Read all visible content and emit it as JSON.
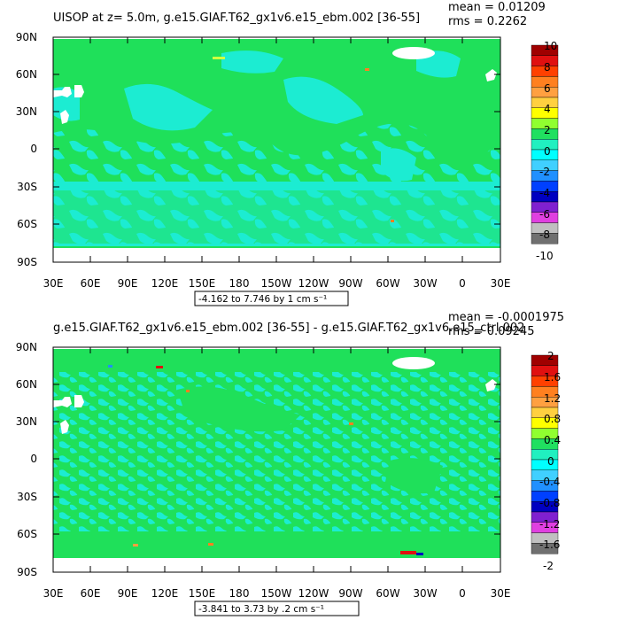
{
  "panels": [
    {
      "title": "UISOP at z=   5.0m, g.e15.GIAF.T62_gx1v6.e15_ebm.002 [36-55]",
      "mean": "mean = 0.01209",
      "rms": "rms = 0.2262",
      "range": "-4.162 to 7.746 by 1 cm s⁻¹",
      "colorbar_labels": [
        "10",
        "8",
        "6",
        "4",
        "2",
        "0",
        "-2",
        "-4",
        "-6",
        "-8",
        "-10"
      ]
    },
    {
      "title": "g.e15.GIAF.T62_gx1v6.e15_ebm.002 [36-55] - g.e15.GIAF.T62_gx1v6.e15_ctrl.002",
      "mean": "mean = -0.0001975",
      "rms": "rms = 0.09245",
      "range": "-3.841 to 3.73 by .2 cm s⁻¹",
      "colorbar_labels": [
        "2",
        "1.6",
        "1.2",
        "0.8",
        "0.4",
        "0",
        "-0.4",
        "-0.8",
        "-1.2",
        "-1.6",
        "-2"
      ]
    }
  ],
  "axes": {
    "lat_labels": [
      "90N",
      "60N",
      "30N",
      "0",
      "30S",
      "60S",
      "90S"
    ],
    "lon_labels": [
      "30E",
      "60E",
      "90E",
      "120E",
      "150E",
      "180",
      "150W",
      "120W",
      "90W",
      "60W",
      "30W",
      "0",
      "30E"
    ]
  },
  "colors": {
    "ocean_green": "#1fe05a",
    "ocean_cyan": "#1cecd2",
    "land": "#ffffff",
    "colorbar": [
      "#a00000",
      "#e01010",
      "#ff4000",
      "#ff8020",
      "#ffa040",
      "#ffd040",
      "#ffff00",
      "#90ff30",
      "#20e060",
      "#20f0c0",
      "#00ffff",
      "#40d0ff",
      "#2090ff",
      "#0040ff",
      "#0000c0",
      "#8020d0",
      "#e040e0",
      "#c0c0c0",
      "#707070"
    ]
  }
}
